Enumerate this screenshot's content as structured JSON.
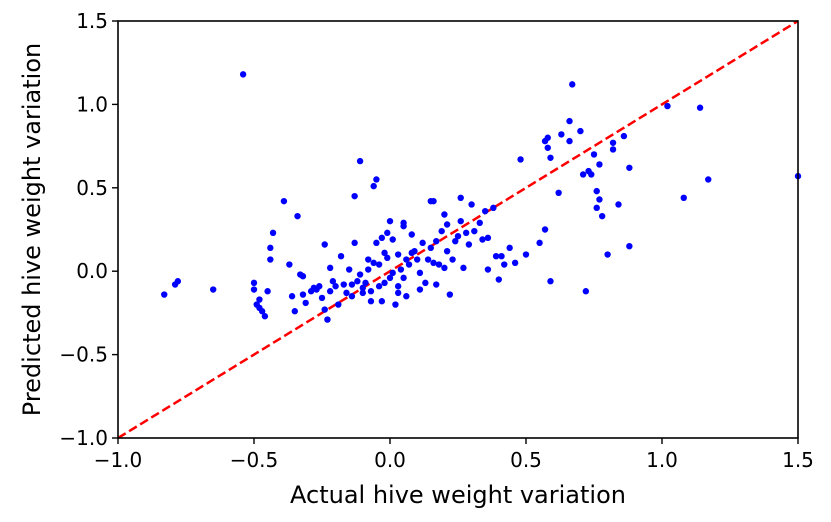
{
  "chart_data": {
    "type": "scatter",
    "xlabel": "Actual hive weight variation",
    "ylabel": "Predicted hive weight variation",
    "xlim": [
      -1.0,
      1.5
    ],
    "ylim": [
      -1.0,
      1.5
    ],
    "x_ticks": [
      -1.0,
      -0.5,
      0.0,
      0.5,
      1.0,
      1.5
    ],
    "y_ticks": [
      -1.0,
      -0.5,
      0.0,
      0.5,
      1.0,
      1.5
    ],
    "x_tick_labels": [
      "−1.0",
      "−0.5",
      "0.0",
      "0.5",
      "1.0",
      "1.5"
    ],
    "y_tick_labels": [
      "−1.0",
      "−0.5",
      "0.0",
      "0.5",
      "1.0",
      "1.5"
    ],
    "grid": false,
    "point_color": "#0000ff",
    "reference_line": {
      "from": [
        -1.0,
        -1.0
      ],
      "to": [
        1.5,
        1.5
      ],
      "color": "#ff0000",
      "style": "dashed"
    },
    "points": [
      [
        -0.83,
        -0.14
      ],
      [
        -0.79,
        -0.08
      ],
      [
        -0.78,
        -0.06
      ],
      [
        -0.65,
        -0.11
      ],
      [
        -0.54,
        1.18
      ],
      [
        -0.5,
        -0.07
      ],
      [
        -0.5,
        -0.11
      ],
      [
        -0.49,
        -0.2
      ],
      [
        -0.48,
        -0.22
      ],
      [
        -0.48,
        -0.17
      ],
      [
        -0.47,
        -0.24
      ],
      [
        -0.46,
        -0.27
      ],
      [
        -0.45,
        -0.12
      ],
      [
        -0.44,
        0.14
      ],
      [
        -0.44,
        0.07
      ],
      [
        -0.43,
        0.23
      ],
      [
        -0.39,
        0.42
      ],
      [
        -0.37,
        0.04
      ],
      [
        -0.36,
        -0.15
      ],
      [
        -0.35,
        -0.24
      ],
      [
        -0.34,
        0.33
      ],
      [
        -0.33,
        -0.02
      ],
      [
        -0.32,
        -0.14
      ],
      [
        -0.32,
        -0.03
      ],
      [
        -0.31,
        -0.19
      ],
      [
        -0.29,
        -0.12
      ],
      [
        -0.28,
        -0.1
      ],
      [
        -0.27,
        -0.11
      ],
      [
        -0.26,
        -0.09
      ],
      [
        -0.25,
        -0.16
      ],
      [
        -0.24,
        -0.23
      ],
      [
        -0.24,
        0.16
      ],
      [
        -0.23,
        -0.29
      ],
      [
        -0.22,
        0.02
      ],
      [
        -0.22,
        -0.12
      ],
      [
        -0.21,
        -0.06
      ],
      [
        -0.2,
        -0.09
      ],
      [
        -0.19,
        -0.2
      ],
      [
        -0.18,
        0.09
      ],
      [
        -0.17,
        -0.08
      ],
      [
        -0.16,
        -0.13
      ],
      [
        -0.15,
        0.01
      ],
      [
        -0.14,
        -0.08
      ],
      [
        -0.14,
        -0.15
      ],
      [
        -0.13,
        0.17
      ],
      [
        -0.13,
        0.45
      ],
      [
        -0.12,
        -0.06
      ],
      [
        -0.11,
        0.66
      ],
      [
        -0.11,
        -0.02
      ],
      [
        -0.1,
        -0.1
      ],
      [
        -0.1,
        -0.13
      ],
      [
        -0.09,
        -0.07
      ],
      [
        -0.08,
        0.07
      ],
      [
        -0.08,
        0.01
      ],
      [
        -0.07,
        -0.12
      ],
      [
        -0.07,
        -0.18
      ],
      [
        -0.06,
        0.05
      ],
      [
        -0.06,
        0.51
      ],
      [
        -0.05,
        0.17
      ],
      [
        -0.05,
        0.55
      ],
      [
        -0.04,
        0.04
      ],
      [
        -0.04,
        -0.09
      ],
      [
        -0.03,
        0.2
      ],
      [
        -0.03,
        -0.18
      ],
      [
        -0.02,
        0.11
      ],
      [
        -0.02,
        -0.07
      ],
      [
        -0.01,
        0.23
      ],
      [
        -0.01,
        0.08
      ],
      [
        0.0,
        0.3
      ],
      [
        0.0,
        -0.04
      ],
      [
        0.01,
        0.19
      ],
      [
        0.01,
        -0.01
      ],
      [
        0.02,
        -0.2
      ],
      [
        0.03,
        -0.09
      ],
      [
        0.03,
        0.1
      ],
      [
        0.03,
        -0.13
      ],
      [
        0.04,
        0.01
      ],
      [
        0.05,
        0.27
      ],
      [
        0.05,
        -0.04
      ],
      [
        0.05,
        0.29
      ],
      [
        0.06,
        0.07
      ],
      [
        0.06,
        -0.15
      ],
      [
        0.07,
        0.04
      ],
      [
        0.08,
        0.11
      ],
      [
        0.08,
        0.22
      ],
      [
        0.09,
        0.12
      ],
      [
        0.1,
        0.07
      ],
      [
        0.11,
        -0.01
      ],
      [
        0.11,
        -0.11
      ],
      [
        0.12,
        0.17
      ],
      [
        0.13,
        -0.07
      ],
      [
        0.14,
        0.07
      ],
      [
        0.15,
        0.14
      ],
      [
        0.15,
        0.42
      ],
      [
        0.16,
        0.42
      ],
      [
        0.16,
        0.05
      ],
      [
        0.17,
        0.18
      ],
      [
        0.17,
        -0.08
      ],
      [
        0.18,
        0.04
      ],
      [
        0.19,
        0.24
      ],
      [
        0.2,
        0.02
      ],
      [
        0.2,
        0.34
      ],
      [
        0.21,
        0.28
      ],
      [
        0.21,
        0.12
      ],
      [
        0.22,
        -0.14
      ],
      [
        0.23,
        0.07
      ],
      [
        0.24,
        0.18
      ],
      [
        0.25,
        0.21
      ],
      [
        0.26,
        0.44
      ],
      [
        0.26,
        0.3
      ],
      [
        0.27,
        0.02
      ],
      [
        0.28,
        0.23
      ],
      [
        0.29,
        0.16
      ],
      [
        0.3,
        0.4
      ],
      [
        0.31,
        0.24
      ],
      [
        0.33,
        0.29
      ],
      [
        0.34,
        0.19
      ],
      [
        0.35,
        0.36
      ],
      [
        0.36,
        0.2
      ],
      [
        0.36,
        0.01
      ],
      [
        0.38,
        0.38
      ],
      [
        0.39,
        0.09
      ],
      [
        0.4,
        -0.05
      ],
      [
        0.41,
        0.09
      ],
      [
        0.42,
        0.04
      ],
      [
        0.44,
        0.14
      ],
      [
        0.46,
        0.05
      ],
      [
        0.48,
        0.67
      ],
      [
        0.5,
        0.1
      ],
      [
        0.55,
        0.17
      ],
      [
        0.57,
        0.25
      ],
      [
        0.57,
        0.78
      ],
      [
        0.58,
        0.8
      ],
      [
        0.58,
        0.74
      ],
      [
        0.59,
        -0.06
      ],
      [
        0.59,
        0.68
      ],
      [
        0.62,
        0.47
      ],
      [
        0.63,
        0.82
      ],
      [
        0.66,
        0.9
      ],
      [
        0.66,
        0.78
      ],
      [
        0.67,
        1.12
      ],
      [
        0.7,
        0.84
      ],
      [
        0.71,
        0.58
      ],
      [
        0.72,
        -0.12
      ],
      [
        0.73,
        0.6
      ],
      [
        0.74,
        0.58
      ],
      [
        0.75,
        0.7
      ],
      [
        0.76,
        0.38
      ],
      [
        0.76,
        0.48
      ],
      [
        0.77,
        0.43
      ],
      [
        0.77,
        0.64
      ],
      [
        0.78,
        0.33
      ],
      [
        0.8,
        0.1
      ],
      [
        0.82,
        0.73
      ],
      [
        0.82,
        0.77
      ],
      [
        0.84,
        0.4
      ],
      [
        0.86,
        0.81
      ],
      [
        0.88,
        0.62
      ],
      [
        0.88,
        0.15
      ],
      [
        1.02,
        0.99
      ],
      [
        1.08,
        0.44
      ],
      [
        1.14,
        0.98
      ],
      [
        1.17,
        0.55
      ],
      [
        1.5,
        0.57
      ]
    ]
  }
}
